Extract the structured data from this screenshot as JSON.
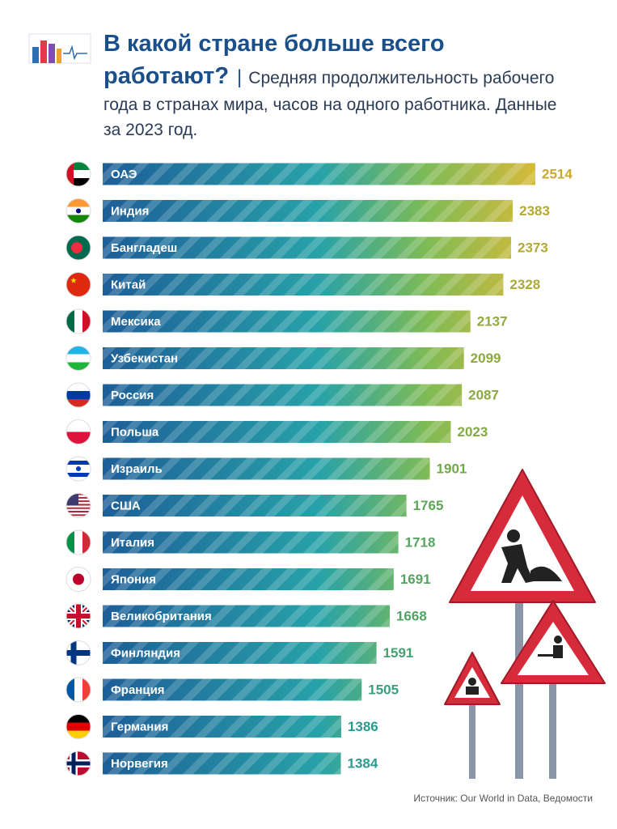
{
  "chart_data": {
    "type": "bar",
    "title": "В какой стране больше всего работают?",
    "subtitle": "Средняя продолжительность рабочего года в странах мира, часов на одного работника.  Данные за 2023 год.",
    "source": "Источник: Our World in Data, Ведомости",
    "categories": [
      "ОАЭ",
      "Индия",
      "Бангладеш",
      "Китай",
      "Мексика",
      "Узбекистан",
      "Россия",
      "Польша",
      "Израиль",
      "США",
      "Италия",
      "Япония",
      "Великобритания",
      "Финляндия",
      "Франция",
      "Германия",
      "Норвегия"
    ],
    "values": [
      2514,
      2383,
      2373,
      2328,
      2137,
      2099,
      2087,
      2023,
      1901,
      1765,
      1718,
      1691,
      1668,
      1591,
      1505,
      1386,
      1384
    ]
  }
}
